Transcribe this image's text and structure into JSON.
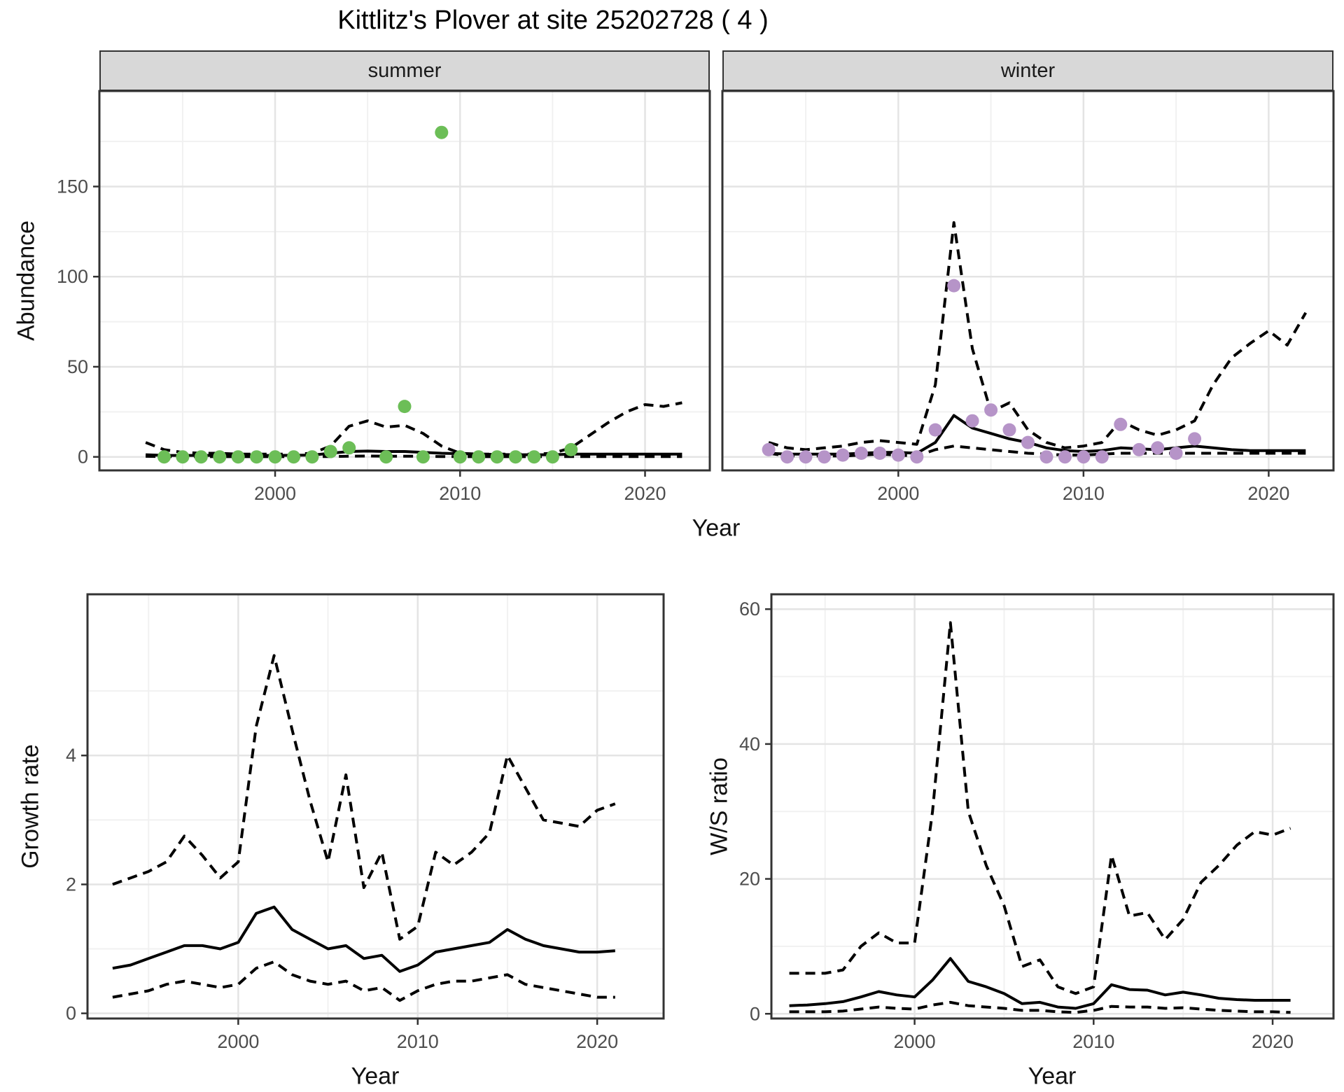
{
  "title": "Kittlitz's Plover at site 25202728 ( 4 )",
  "colors": {
    "summer_point": "#6CBE57",
    "winter_point": "#B694C8",
    "line": "#000000",
    "panel_border": "#333333",
    "strip_bg": "#d8d8d8",
    "grid_major": "#e4e4e4",
    "grid_minor": "#f1f1f1",
    "tick_mark": "#333333",
    "tick_label": "#4d4d4d"
  },
  "shared_xlabel": "Year",
  "chart_data": [
    {
      "id": "abundance-summer",
      "type": "line",
      "facet_label": "summer",
      "xlabel": "Year",
      "ylabel": "Abundance",
      "xlim": [
        1990.5,
        2023.5
      ],
      "ylim": [
        -7.5,
        203
      ],
      "xticks": [
        2000,
        2010,
        2020
      ],
      "yticks": [
        0,
        50,
        100,
        150
      ],
      "xticks_minor": [
        1995,
        2005,
        2015
      ],
      "yticks_minor": [
        25,
        75,
        125,
        175
      ],
      "years": [
        1993,
        1994,
        1995,
        1996,
        1997,
        1998,
        1999,
        2000,
        2001,
        2002,
        2003,
        2004,
        2005,
        2006,
        2007,
        2008,
        2009,
        2010,
        2011,
        2012,
        2013,
        2014,
        2015,
        2016,
        2017,
        2018,
        2019,
        2020,
        2021,
        2022
      ],
      "series": [
        {
          "name": "lower-ci",
          "style": "dashed",
          "values": [
            0.3,
            0.1,
            0.1,
            0.1,
            0.1,
            0.1,
            0.1,
            0.1,
            0.1,
            0.1,
            0.2,
            0.4,
            0.5,
            0.4,
            0.4,
            0.3,
            0.2,
            0.1,
            0.1,
            0.1,
            0.1,
            0.1,
            0.1,
            0.2,
            0.2,
            0.2,
            0.2,
            0.2,
            0.2,
            0.2
          ]
        },
        {
          "name": "upper-ci",
          "style": "dashed",
          "values": [
            8,
            4,
            2.5,
            2,
            2,
            1.5,
            1.5,
            1.5,
            1.5,
            2,
            6,
            17,
            20,
            16.5,
            17.5,
            13,
            6,
            2,
            1.5,
            1.5,
            1.5,
            1.5,
            2,
            5,
            12,
            19,
            25,
            29,
            28,
            30
          ]
        },
        {
          "name": "fit",
          "style": "solid",
          "values": [
            1.2,
            0.8,
            0.8,
            0.8,
            0.8,
            0.8,
            0.8,
            0.8,
            0.9,
            1.0,
            2.0,
            3.0,
            3.2,
            3.0,
            3.0,
            2.5,
            2.0,
            1.8,
            1.5,
            1.3,
            1.2,
            1.2,
            1.2,
            1.5,
            1.5,
            1.5,
            1.5,
            1.5,
            1.5,
            1.5
          ]
        }
      ],
      "points": {
        "name": "summer-observations",
        "color_key": "summer_point",
        "data": [
          [
            1994,
            0
          ],
          [
            1995,
            0
          ],
          [
            1996,
            0
          ],
          [
            1997,
            0
          ],
          [
            1998,
            0
          ],
          [
            1999,
            0
          ],
          [
            2000,
            0
          ],
          [
            2001,
            0
          ],
          [
            2002,
            0
          ],
          [
            2003,
            3
          ],
          [
            2004,
            5
          ],
          [
            2006,
            0
          ],
          [
            2007,
            28
          ],
          [
            2008,
            0
          ],
          [
            2009,
            180
          ],
          [
            2010,
            0
          ],
          [
            2011,
            0
          ],
          [
            2012,
            0
          ],
          [
            2013,
            0
          ],
          [
            2014,
            0
          ],
          [
            2015,
            0
          ],
          [
            2016,
            4
          ]
        ]
      }
    },
    {
      "id": "abundance-winter",
      "type": "line",
      "facet_label": "winter",
      "xlabel": "Year",
      "ylabel": "Abundance",
      "xlim": [
        1990.5,
        2023.5
      ],
      "ylim": [
        -7.5,
        203
      ],
      "xticks": [
        2000,
        2010,
        2020
      ],
      "yticks": [
        0,
        50,
        100,
        150
      ],
      "xticks_minor": [
        1995,
        2005,
        2015
      ],
      "yticks_minor": [
        25,
        75,
        125,
        175
      ],
      "years": [
        1993,
        1994,
        1995,
        1996,
        1997,
        1998,
        1999,
        2000,
        2001,
        2002,
        2003,
        2004,
        2005,
        2006,
        2007,
        2008,
        2009,
        2010,
        2011,
        2012,
        2013,
        2014,
        2015,
        2016,
        2017,
        2018,
        2019,
        2020,
        2021,
        2022
      ],
      "series": [
        {
          "name": "lower-ci",
          "style": "dashed",
          "values": [
            2,
            0.5,
            0.5,
            0.5,
            0.5,
            1,
            1.5,
            1,
            0.5,
            4,
            6,
            5,
            4,
            3,
            2,
            1.5,
            1,
            1,
            1.5,
            2,
            2,
            2,
            2,
            2,
            2,
            2,
            2,
            2,
            2,
            2
          ]
        },
        {
          "name": "upper-ci",
          "style": "dashed",
          "values": [
            8,
            5,
            4,
            5,
            6,
            8,
            9,
            8,
            7,
            40,
            130,
            60,
            25,
            30,
            15,
            8,
            5,
            6,
            8,
            20,
            15,
            12,
            15,
            20,
            40,
            55,
            63,
            70,
            62,
            80
          ]
        },
        {
          "name": "fit",
          "style": "solid",
          "values": [
            2,
            1.5,
            1.5,
            1.5,
            1.5,
            2,
            2.5,
            2.5,
            2,
            8,
            23,
            16,
            13,
            10,
            8,
            5,
            3.5,
            3,
            3.5,
            5,
            4.5,
            4,
            5,
            6,
            5,
            4,
            3.5,
            3.5,
            3.5,
            3.5
          ]
        }
      ],
      "points": {
        "name": "winter-observations",
        "color_key": "winter_point",
        "data": [
          [
            1993,
            4
          ],
          [
            1994,
            0
          ],
          [
            1995,
            0
          ],
          [
            1996,
            0
          ],
          [
            1997,
            1
          ],
          [
            1998,
            2
          ],
          [
            1999,
            2
          ],
          [
            2000,
            1
          ],
          [
            2001,
            0
          ],
          [
            2002,
            15
          ],
          [
            2003,
            95
          ],
          [
            2004,
            20
          ],
          [
            2005,
            26
          ],
          [
            2006,
            15
          ],
          [
            2007,
            8
          ],
          [
            2008,
            0
          ],
          [
            2009,
            0
          ],
          [
            2010,
            0
          ],
          [
            2011,
            0
          ],
          [
            2012,
            18
          ],
          [
            2013,
            4
          ],
          [
            2014,
            5
          ],
          [
            2015,
            2
          ],
          [
            2016,
            10
          ]
        ]
      }
    },
    {
      "id": "growth-rate",
      "type": "line",
      "facet_label": "",
      "xlabel": "Year",
      "ylabel": "Growth rate",
      "xlim": [
        1991.6,
        2023.7
      ],
      "ylim": [
        -0.08,
        6.5
      ],
      "xticks": [
        2000,
        2010,
        2020
      ],
      "yticks": [
        0,
        2,
        4
      ],
      "xticks_minor": [
        1995,
        2005,
        2015
      ],
      "yticks_minor": [
        1,
        3,
        5
      ],
      "years": [
        1993,
        1994,
        1995,
        1996,
        1997,
        1998,
        1999,
        2000,
        2001,
        2002,
        2003,
        2004,
        2005,
        2006,
        2007,
        2008,
        2009,
        2010,
        2011,
        2012,
        2013,
        2014,
        2015,
        2016,
        2017,
        2018,
        2019,
        2020,
        2021
      ],
      "series": [
        {
          "name": "lower-ci",
          "style": "dashed",
          "values": [
            0.25,
            0.3,
            0.35,
            0.45,
            0.5,
            0.45,
            0.4,
            0.45,
            0.7,
            0.8,
            0.6,
            0.5,
            0.45,
            0.5,
            0.35,
            0.4,
            0.2,
            0.35,
            0.45,
            0.5,
            0.5,
            0.55,
            0.6,
            0.45,
            0.4,
            0.35,
            0.3,
            0.25,
            0.25
          ]
        },
        {
          "name": "upper-ci",
          "style": "dashed",
          "values": [
            2.0,
            2.1,
            2.2,
            2.35,
            2.75,
            2.45,
            2.1,
            2.35,
            4.45,
            5.55,
            4.4,
            3.3,
            2.35,
            3.7,
            1.95,
            2.5,
            1.15,
            1.35,
            2.5,
            2.3,
            2.5,
            2.8,
            4.0,
            3.5,
            3.0,
            2.95,
            2.9,
            3.15,
            3.25
          ]
        },
        {
          "name": "fit",
          "style": "solid",
          "values": [
            0.7,
            0.75,
            0.85,
            0.95,
            1.05,
            1.05,
            1.0,
            1.1,
            1.55,
            1.65,
            1.3,
            1.15,
            1.0,
            1.05,
            0.85,
            0.9,
            0.65,
            0.75,
            0.95,
            1.0,
            1.05,
            1.1,
            1.3,
            1.15,
            1.05,
            1.0,
            0.95,
            0.95,
            0.97
          ]
        }
      ]
    },
    {
      "id": "ws-ratio",
      "type": "line",
      "facet_label": "",
      "xlabel": "Year",
      "ylabel": "W/S ratio",
      "xlim": [
        1992.0,
        2023.4
      ],
      "ylim": [
        -0.7,
        62.2
      ],
      "xticks": [
        2000,
        2010,
        2020
      ],
      "yticks": [
        0,
        20,
        40,
        60
      ],
      "xticks_minor": [
        1995,
        2005,
        2015
      ],
      "yticks_minor": [
        10,
        30,
        50
      ],
      "years": [
        1993,
        1994,
        1995,
        1996,
        1997,
        1998,
        1999,
        2000,
        2001,
        2002,
        2003,
        2004,
        2005,
        2006,
        2007,
        2008,
        2009,
        2010,
        2011,
        2012,
        2013,
        2014,
        2015,
        2016,
        2017,
        2018,
        2019,
        2020,
        2021
      ],
      "series": [
        {
          "name": "lower-ci",
          "style": "dashed",
          "values": [
            0.3,
            0.3,
            0.3,
            0.4,
            0.7,
            1.0,
            0.8,
            0.7,
            1.3,
            1.7,
            1.2,
            1.0,
            0.8,
            0.5,
            0.5,
            0.3,
            0.2,
            0.5,
            1.1,
            1.0,
            1.0,
            0.8,
            0.9,
            0.7,
            0.5,
            0.4,
            0.3,
            0.3,
            0.2
          ]
        },
        {
          "name": "upper-ci",
          "style": "dashed",
          "values": [
            6,
            6,
            6,
            6.5,
            10,
            12,
            10.5,
            10.5,
            30,
            58,
            30,
            22,
            16,
            7,
            8,
            4,
            3,
            4,
            23.5,
            14.5,
            15,
            11,
            14,
            19.5,
            22,
            25,
            27,
            26.5,
            27.5
          ]
        },
        {
          "name": "fit",
          "style": "solid",
          "values": [
            1.2,
            1.3,
            1.5,
            1.8,
            2.5,
            3.3,
            2.8,
            2.5,
            5.0,
            8.2,
            4.8,
            4.0,
            3.0,
            1.5,
            1.7,
            1.0,
            0.8,
            1.5,
            4.3,
            3.6,
            3.5,
            2.8,
            3.2,
            2.8,
            2.3,
            2.1,
            2.0,
            2.0,
            2.0
          ]
        }
      ]
    }
  ]
}
